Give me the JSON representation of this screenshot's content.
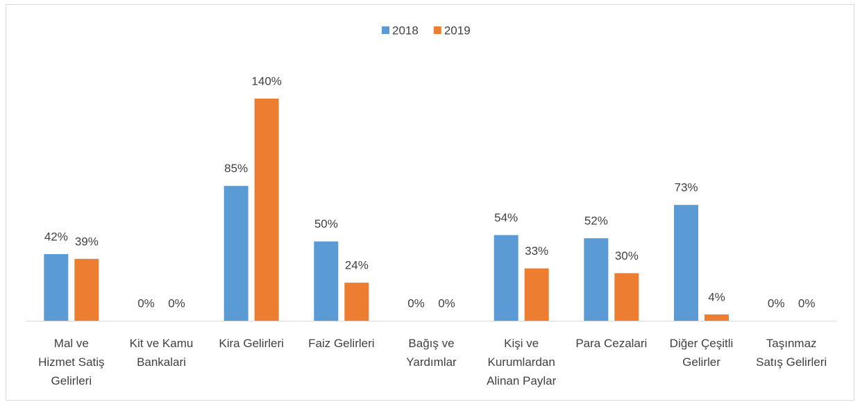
{
  "chart_data": {
    "type": "bar",
    "categories": [
      "Mal ve\nHizmet Satiş\nGelirleri",
      "Kit ve Kamu\nBankalari",
      "Kira Gelirleri",
      "Faiz Gelirleri",
      "Bağış ve\nYardımlar",
      "Kişi ve\nKurumlardan\nAlinan Paylar",
      "Para Cezalari",
      "Diğer Çeşitli\nGelirler",
      "Taşınmaz\nSatış Gelirleri"
    ],
    "series": [
      {
        "name": "2018",
        "color": "#5b9bd5",
        "values": [
          42,
          0,
          85,
          50,
          0,
          54,
          52,
          73,
          0
        ],
        "value_labels": [
          "42%",
          "0%",
          "85%",
          "50%",
          "0%",
          "54%",
          "52%",
          "73%",
          "0%"
        ]
      },
      {
        "name": "2019",
        "color": "#ed7d31",
        "values": [
          39,
          0,
          140,
          24,
          0,
          33,
          30,
          4,
          0
        ],
        "value_labels": [
          "39%",
          "0%",
          "140%",
          "24%",
          "0%",
          "33%",
          "30%",
          "4%",
          "0%"
        ]
      }
    ],
    "legend": "top"
  }
}
